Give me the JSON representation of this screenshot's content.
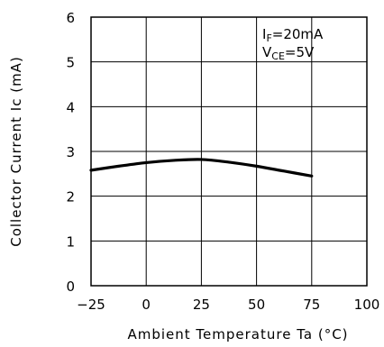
{
  "chart_data": {
    "type": "line",
    "title": "",
    "xlabel": "Ambient Temperature Ta (°C)",
    "ylabel": "Collector Current Ic (mA)",
    "xlim": [
      -25,
      100
    ],
    "ylim": [
      0,
      6
    ],
    "x_ticks": [
      -25,
      0,
      25,
      50,
      75,
      100
    ],
    "y_ticks": [
      0,
      1,
      2,
      3,
      4,
      5,
      6
    ],
    "grid": true,
    "series": [
      {
        "x": [
          -25,
          -12.5,
          0,
          12.5,
          25,
          37.5,
          50,
          62.5,
          75
        ],
        "values": [
          2.58,
          2.67,
          2.75,
          2.8,
          2.82,
          2.76,
          2.67,
          2.56,
          2.45
        ]
      }
    ],
    "annotations": {
      "if_symbol": "I",
      "if_sub": "F",
      "if_value": "=20mA",
      "vce_symbol": "V",
      "vce_sub": "CE",
      "vce_value": "=5V"
    }
  }
}
